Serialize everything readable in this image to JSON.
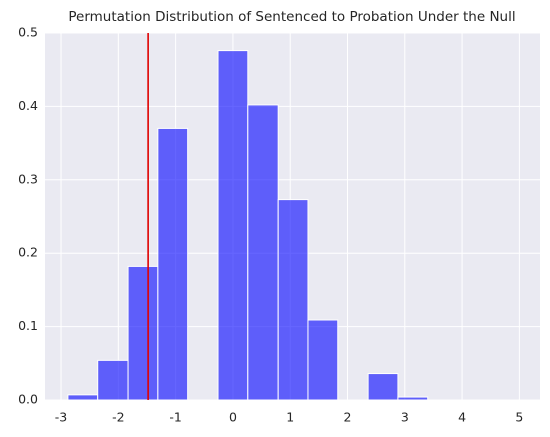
{
  "chart_data": {
    "type": "histogram",
    "title": "Permutation Distribution of Sentenced to Probation Under the Null",
    "bins": [
      -2.88,
      -2.36,
      -1.83,
      -1.31,
      -0.79,
      -0.26,
      0.26,
      0.79,
      1.31,
      1.83,
      2.36,
      2.88,
      3.4
    ],
    "counts": [
      0.007,
      0.054,
      0.182,
      0.37,
      0,
      0.476,
      0.402,
      0.273,
      0.109,
      0,
      0.036,
      0.004
    ],
    "color": "#0000ff",
    "vline": {
      "value": -1.48,
      "color": "#e00000"
    },
    "xlim": [
      -3.28,
      5.36
    ],
    "xticks": [
      -3,
      -2,
      -1,
      0,
      1,
      2,
      3,
      4,
      5
    ],
    "ylim": [
      0,
      0.5
    ],
    "yticks": [
      0.0,
      0.1,
      0.2,
      0.3,
      0.4,
      0.5
    ],
    "grid": true
  }
}
